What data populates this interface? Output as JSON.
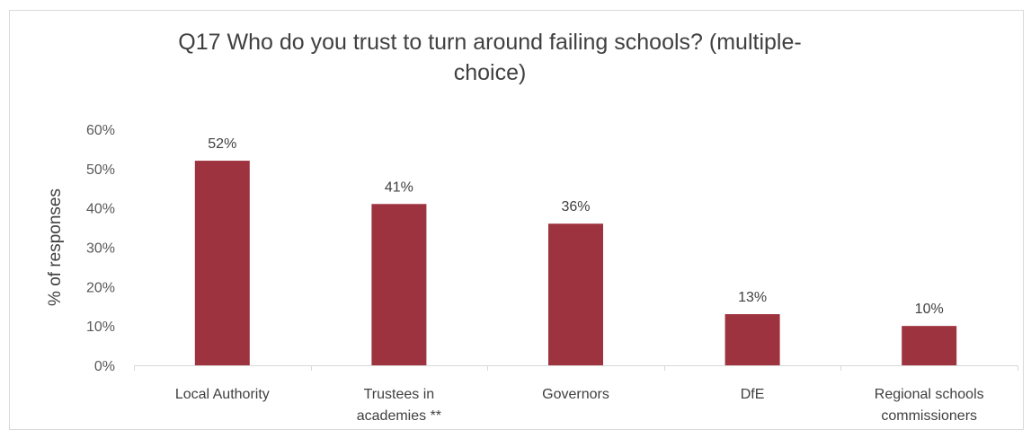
{
  "chart_data": {
    "type": "bar",
    "title": "Q17 Who do you trust to turn around failing schools? (multiple-choice)",
    "title_lines": [
      "Q17 Who do you trust to turn around failing schools? (multiple-",
      "choice)"
    ],
    "ylabel": "% of responses",
    "xlabel": "",
    "categories": [
      [
        "Local Authority"
      ],
      [
        "Trustees in",
        "academies **"
      ],
      [
        "Governors"
      ],
      [
        "DfE"
      ],
      [
        "Regional schools",
        "commissioners"
      ]
    ],
    "values": [
      52,
      41,
      36,
      13,
      10
    ],
    "data_labels": [
      "52%",
      "41%",
      "36%",
      "13%",
      "10%"
    ],
    "yticks": [
      "0%",
      "10%",
      "20%",
      "30%",
      "40%",
      "50%",
      "60%"
    ],
    "ylim": [
      0,
      60
    ],
    "grid": false,
    "legend": "none",
    "bar_color": "#9e3340"
  }
}
